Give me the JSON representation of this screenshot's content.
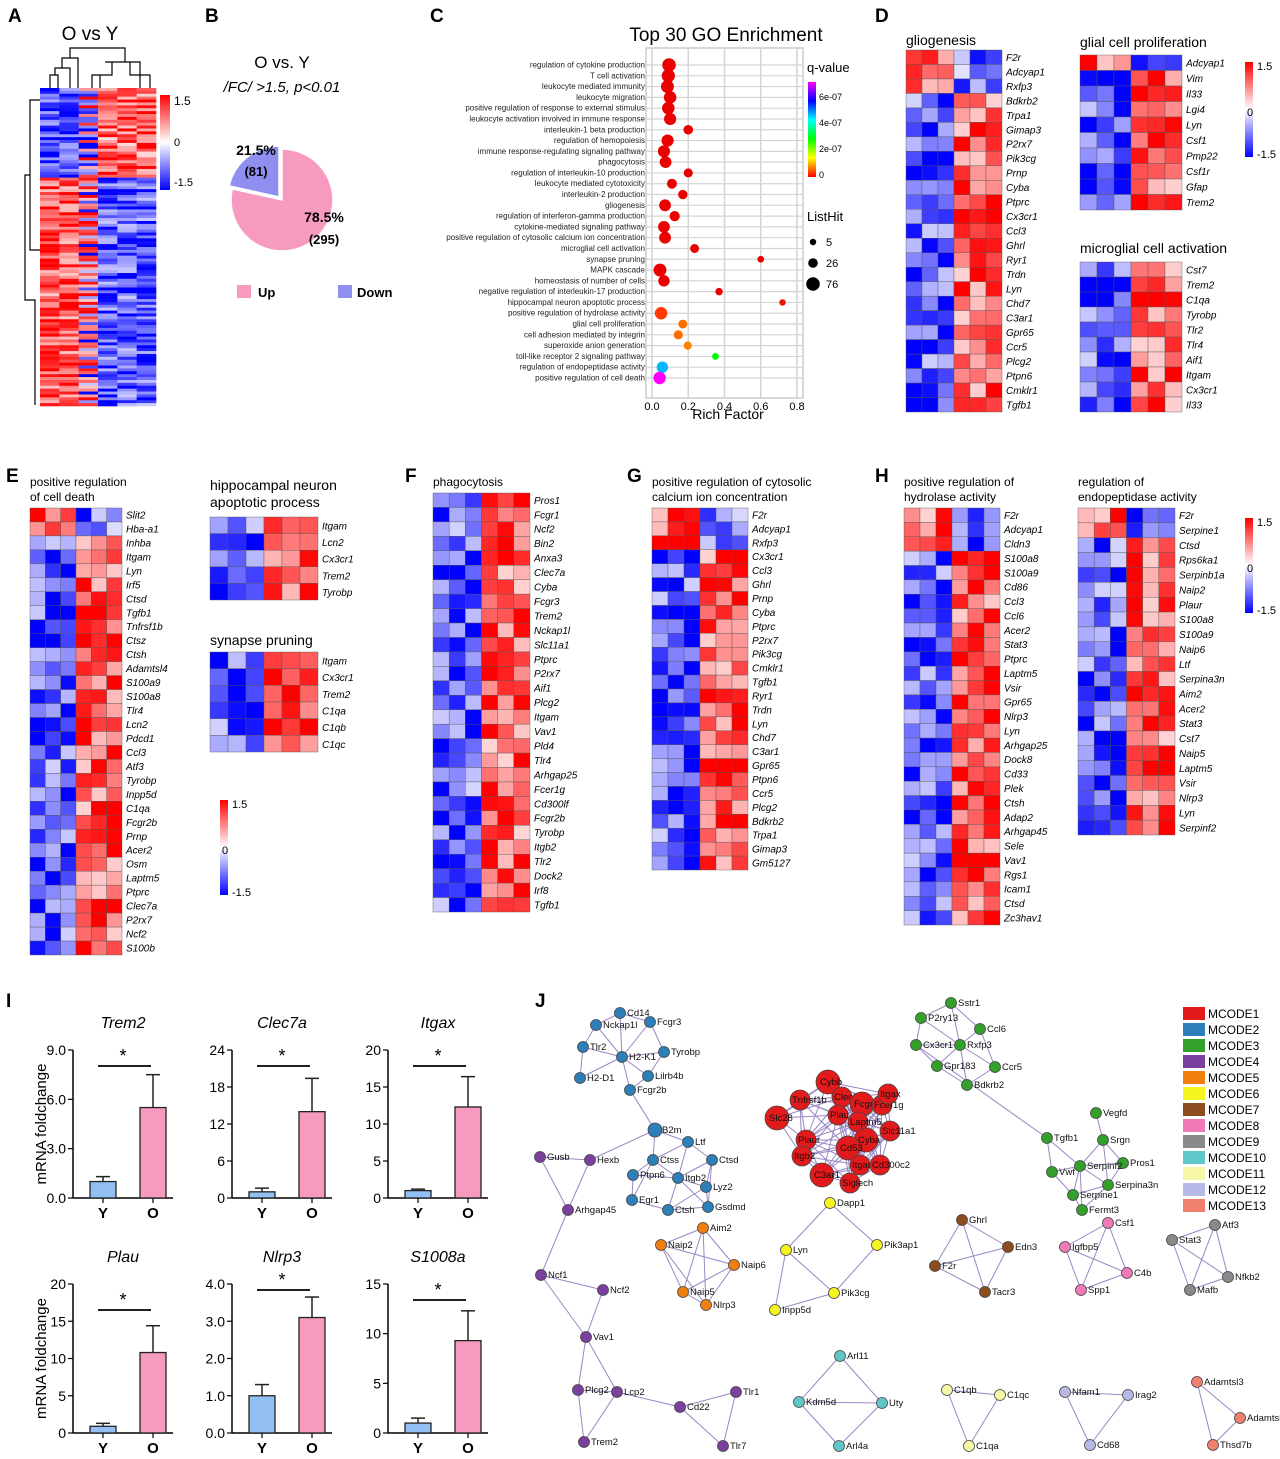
{
  "panel_letters": [
    "A",
    "B",
    "C",
    "D",
    "E",
    "F",
    "G",
    "H",
    "I",
    "J"
  ],
  "panel_a": {
    "title": "O vs Y",
    "colorbar": [
      "1.5",
      "0",
      "-1.5"
    ]
  },
  "panel_b": {
    "title": "O vs. Y",
    "subtitle": "/FC/ >1.5, p<0.01",
    "chart_data": {
      "type": "pie",
      "slices": [
        {
          "name": "Up",
          "percent": 78.5,
          "count": 295,
          "pct_label": "78.5%",
          "count_label": "(295)",
          "color": "#f79ac0"
        },
        {
          "name": "Down",
          "percent": 21.5,
          "count": 81,
          "pct_label": "21.5%",
          "count_label": "(81)",
          "color": "#8f8ff0"
        }
      ]
    }
  },
  "chart_data": {
    "type": "scatter",
    "title": "Top 30 GO Enrichment",
    "xlabel": "Rich Factor",
    "xlim": [
      0,
      0.8
    ],
    "xticks": [
      "0.0",
      "0.2",
      "0.4",
      "0.6",
      "0.8"
    ],
    "color_legend": {
      "title": "q-value",
      "ticks": [
        "6e-07",
        "4e-07",
        "2e-07",
        "0"
      ]
    },
    "size_legend": {
      "title": "ListHit",
      "values": [
        "5",
        "26",
        "76"
      ]
    },
    "grid": true,
    "terms": [
      {
        "label": "regulation of cytokine production",
        "rich": 0.094,
        "hit": 76,
        "q": 0
      },
      {
        "label": "T cell activation",
        "rich": 0.09,
        "hit": 70,
        "q": 0
      },
      {
        "label": "leukocyte mediated immunity",
        "rich": 0.085,
        "hit": 65,
        "q": 0
      },
      {
        "label": "leukocyte migration",
        "rich": 0.1,
        "hit": 60,
        "q": 0
      },
      {
        "label": "positive regulation of response to external stimulus",
        "rich": 0.09,
        "hit": 60,
        "q": 0
      },
      {
        "label": "leukocyte activation involved in immune response",
        "rich": 0.1,
        "hit": 55,
        "q": 0
      },
      {
        "label": "interleukin-1 beta production",
        "rich": 0.2,
        "hit": 26,
        "q": 0
      },
      {
        "label": "regulation of hemopoiesis",
        "rich": 0.086,
        "hit": 55,
        "q": 0
      },
      {
        "label": "immune response-regulating signaling pathway",
        "rich": 0.066,
        "hit": 55,
        "q": 0
      },
      {
        "label": "phagocytosis",
        "rich": 0.075,
        "hit": 50,
        "q": 0
      },
      {
        "label": "regulation of interleukin-10 production",
        "rich": 0.2,
        "hit": 22,
        "q": 0
      },
      {
        "label": "leukocyte mediated cytotoxicity",
        "rich": 0.11,
        "hit": 30,
        "q": 0
      },
      {
        "label": "interleukin-2 production",
        "rich": 0.17,
        "hit": 24,
        "q": 0
      },
      {
        "label": "gliogenesis",
        "rich": 0.072,
        "hit": 50,
        "q": 0
      },
      {
        "label": "regulation of interferon-gamma production",
        "rich": 0.125,
        "hit": 32,
        "q": 0
      },
      {
        "label": "cytokine-mediated signaling pathway",
        "rich": 0.066,
        "hit": 50,
        "q": 0
      },
      {
        "label": "positive regulation of cytosolic calcium ion concentration",
        "rich": 0.072,
        "hit": 50,
        "q": 0
      },
      {
        "label": "microglial cell activation",
        "rich": 0.235,
        "hit": 20,
        "q": 0
      },
      {
        "label": "synapse pruning",
        "rich": 0.6,
        "hit": 6,
        "q": 0
      },
      {
        "label": "MAPK cascade",
        "rich": 0.044,
        "hit": 65,
        "q": 0
      },
      {
        "label": "homeostasis of number of cells",
        "rich": 0.066,
        "hit": 45,
        "q": 0
      },
      {
        "label": "negative regulation of interleukin-17 production",
        "rich": 0.37,
        "hit": 10,
        "q": 0
      },
      {
        "label": "hippocampal neuron apoptotic process",
        "rich": 0.72,
        "hit": 5,
        "q": 1e-08
      },
      {
        "label": "positive regulation of hydrolase activity",
        "rich": 0.05,
        "hit": 60,
        "q": 3e-08
      },
      {
        "label": "glial cell proliferation",
        "rich": 0.17,
        "hit": 20,
        "q": 6e-08
      },
      {
        "label": "cell adhesion mediated by integrin",
        "rich": 0.145,
        "hit": 22,
        "q": 6e-08
      },
      {
        "label": "superoxide anion generation",
        "rich": 0.197,
        "hit": 15,
        "q": 7e-08
      },
      {
        "label": "toll-like receptor 2 signaling pathway",
        "rich": 0.35,
        "hit": 7,
        "q": 2.8e-07
      },
      {
        "label": "regulation of endopeptidase activity",
        "rich": 0.057,
        "hit": 45,
        "q": 4.6e-07
      },
      {
        "label": "positive regulation of cell death",
        "rich": 0.042,
        "hit": 60,
        "q": 7e-07
      }
    ]
  },
  "heatmaps": {
    "gliogenesis": {
      "title": "gliogenesis",
      "genes": [
        "F2r",
        "Adcyap1",
        "Rxfp3",
        "Bdkrb2",
        "Trpa1",
        "Gimap3",
        "P2rx7",
        "Pik3cg",
        "Prnp",
        "Cyba",
        "Ptprc",
        "Cx3cr1",
        "Ccl3",
        "Ghrl",
        "Ryr1",
        "Trdn",
        "Lyn",
        "Chd7",
        "C3ar1",
        "Gpr65",
        "Ccr5",
        "Plcg2",
        "Ptpn6",
        "Cmklr1",
        "Tgfb1"
      ]
    },
    "glial_prolif": {
      "title": "glial cell proliferation",
      "genes": [
        "Adcyap1",
        "Vim",
        "Il33",
        "Lgi4",
        "Lyn",
        "Csf1",
        "Pmp22",
        "Csf1r",
        "Gfap",
        "Trem2"
      ]
    },
    "microglial": {
      "title": "microglial cell activation",
      "genes": [
        "Cst7",
        "Trem2",
        "C1qa",
        "Tyrobp",
        "Tlr2",
        "Tlr4",
        "Aif1",
        "Itgam",
        "Cx3cr1",
        "Il33"
      ]
    },
    "cell_death": {
      "title": [
        "positive regulation",
        "of cell death"
      ],
      "genes": [
        "Slit2",
        "Hba-a1",
        "Inhba",
        "Itgam",
        "Lyn",
        "Irf5",
        "Ctsd",
        "Tgfb1",
        "Tnfrsf1b",
        "Ctsz",
        "Ctsh",
        "Adamtsl4",
        "S100a9",
        "S100a8",
        "Tlr4",
        "Lcn2",
        "Pdcd1",
        "Ccl3",
        "Atf3",
        "Tyrobp",
        "Inpp5d",
        "C1qa",
        "Fcgr2b",
        "Prnp",
        "Acer2",
        "Osm",
        "Laptm5",
        "Ptprc",
        "Clec7a",
        "P2rx7",
        "Ncf2",
        "S100b"
      ]
    },
    "hippocampal": {
      "title": [
        "hippocampal neuron",
        "apoptotic process"
      ],
      "genes": [
        "Itgam",
        "Lcn2",
        "Cx3cr1",
        "Trem2",
        "Tyrobp"
      ]
    },
    "synapse": {
      "title": [
        "synapse pruning"
      ],
      "genes": [
        "Itgam",
        "Cx3cr1",
        "Trem2",
        "C1qa",
        "C1qb",
        "C1qc"
      ]
    },
    "phagocytosis": {
      "title": "phagocytosis",
      "genes": [
        "Pros1",
        "Fcgr1",
        "Ncf2",
        "Bin2",
        "Anxa3",
        "Clec7a",
        "Cyba",
        "Fcgr3",
        "Trem2",
        "Nckap1l",
        "Slc11a1",
        "Ptprc",
        "P2rx7",
        "Aif1",
        "Plcg2",
        "Itgam",
        "Vav1",
        "Pld4",
        "Tlr4",
        "Arhgap25",
        "Fcer1g",
        "Cd300lf",
        "Fcgr2b",
        "Tyrobp",
        "Itgb2",
        "Tlr2",
        "Dock2",
        "Irf8",
        "Tgfb1"
      ]
    },
    "calcium": {
      "title": [
        "positive regulation of cytosolic",
        "calcium ion concentration"
      ],
      "genes": [
        "F2r",
        "Adcyap1",
        "Rxfp3",
        "Cx3cr1",
        "Ccl3",
        "Ghrl",
        "Prnp",
        "Cyba",
        "Ptprc",
        "P2rx7",
        "Pik3cg",
        "Cmklr1",
        "Tgfb1",
        "Ryr1",
        "Trdn",
        "Lyn",
        "Chd7",
        "C3ar1",
        "Gpr65",
        "Ptpn6",
        "Ccr5",
        "Plcg2",
        "Bdkrb2",
        "Trpa1",
        "Gimap3",
        "Gm5127"
      ]
    },
    "hydrolase": {
      "title": [
        "positive regulation of",
        "hydrolase activity"
      ],
      "genes": [
        "F2r",
        "Adcyap1",
        "Cldn3",
        "S100a8",
        "S100a9",
        "Cd86",
        "Ccl3",
        "Ccl6",
        "Acer2",
        "Stat3",
        "Ptprc",
        "Laptm5",
        "Vsir",
        "Gpr65",
        "Nlrp3",
        "Lyn",
        "Arhgap25",
        "Dock8",
        "Cd33",
        "Plek",
        "Ctsh",
        "Adap2",
        "Arhgap45",
        "Sele",
        "Vav1",
        "Rgs1",
        "Icam1",
        "Ctsd",
        "Zc3hav1"
      ]
    },
    "endopeptidase": {
      "title": [
        "regulation of",
        "endopeptidase activity"
      ],
      "genes": [
        "F2r",
        "Serpine1",
        "Ctsd",
        "Rps6ka1",
        "Serpinb1a",
        "Naip2",
        "Plaur",
        "S100a8",
        "S100a9",
        "Naip6",
        "Ltf",
        "Serpina3n",
        "Aim2",
        "Acer2",
        "Stat3",
        "Cst7",
        "Naip5",
        "Laptm5",
        "Vsir",
        "Nlrp3",
        "Lyn",
        "Serpinf2"
      ]
    },
    "colorbar": [
      "1.5",
      "0",
      "-1.5"
    ]
  },
  "bar_charts": {
    "ylabel": "mRNA foldchange",
    "categories": [
      "Y",
      "O"
    ],
    "colors": {
      "Y": "#92c0f2",
      "O": "#f79ac0"
    },
    "significance": "*",
    "charts": [
      {
        "title": "Trem2",
        "ylim": [
          0,
          9
        ],
        "yticks": [
          "0.0",
          "3.0",
          "6.0",
          "9.0"
        ],
        "values": [
          1.0,
          5.5
        ],
        "errors": [
          0.3,
          2.0
        ]
      },
      {
        "title": "Clec7a",
        "ylim": [
          0,
          24
        ],
        "yticks": [
          "0",
          "6",
          "12",
          "18",
          "24"
        ],
        "values": [
          1.0,
          14.0
        ],
        "errors": [
          0.6,
          5.4
        ]
      },
      {
        "title": "Itgax",
        "ylim": [
          0,
          20
        ],
        "yticks": [
          "0",
          "5",
          "10",
          "15",
          "20"
        ],
        "values": [
          1.0,
          12.3
        ],
        "errors": [
          0.2,
          4.1
        ]
      },
      {
        "title": "Plau",
        "ylim": [
          0,
          20
        ],
        "yticks": [
          "0",
          "5",
          "10",
          "15",
          "20"
        ],
        "values": [
          0.9,
          10.8
        ],
        "errors": [
          0.4,
          3.6
        ]
      },
      {
        "title": "Nlrp3",
        "ylim": [
          0,
          4
        ],
        "yticks": [
          "0.0",
          "1.0",
          "2.0",
          "3.0",
          "4.0"
        ],
        "values": [
          1.0,
          3.1
        ],
        "errors": [
          0.3,
          0.55
        ]
      },
      {
        "title": "S1008a",
        "ylim": [
          0,
          15
        ],
        "yticks": [
          "0",
          "5",
          "10",
          "15"
        ],
        "values": [
          1.0,
          9.3
        ],
        "errors": [
          0.5,
          3.0
        ]
      }
    ]
  },
  "network": {
    "clusters": [
      {
        "name": "MCODE1",
        "color": "#e31a1c",
        "nodes": [
          "Cybb",
          "Tnfrsf1b",
          "Clec5a",
          "Fcgr1",
          "Fcer1g",
          "Itgax",
          "Slc28",
          "Plau",
          "Laptm5",
          "Cyba",
          "Slc11a1",
          "Plaur",
          "Cd53",
          "Itgb2",
          "Itgam",
          "C3ar1",
          "Siglech",
          "Cd300c2"
        ]
      },
      {
        "name": "MCODE2",
        "color": "#2c7fb8",
        "nodes": [
          "Cd14",
          "Nckap1l",
          "Fcgr3",
          "Tlr2",
          "H2-K1",
          "Tyrobp",
          "H2-D1",
          "Lilrb4b",
          "Fcgr2b",
          "B2m",
          "Ltf",
          "Ctss",
          "Ctsd",
          "Ptpn6",
          "Itgb2",
          "Lyz2",
          "Egr1",
          "Ctsh",
          "Gsdmd"
        ]
      },
      {
        "name": "MCODE3",
        "color": "#33a02c",
        "nodes": [
          "Sstr1",
          "P2ry13",
          "Ccl6",
          "Cx3cr1",
          "Rxfp3",
          "Gpr183",
          "Ccr5",
          "Bdkrb2",
          "Vegfd",
          "Srgn",
          "Tgfb1",
          "Pros1",
          "Serpinf2",
          "Vwf",
          "Serpina3n",
          "Serpine1",
          "Fermt3"
        ]
      },
      {
        "name": "MCODE4",
        "color": "#7b3f9e",
        "nodes": [
          "Gusb",
          "Hexb",
          "Arhgap45",
          "Ncf1",
          "Ncf2",
          "Vav1",
          "Plcg2",
          "Lcp2",
          "Cd22",
          "Tlr1",
          "Tlr7",
          "Trem2"
        ]
      },
      {
        "name": "MCODE5",
        "color": "#f07f0f",
        "nodes": [
          "Aim2",
          "Naip2",
          "Naip6",
          "Naip5",
          "Nlrp3"
        ]
      },
      {
        "name": "MCODE6",
        "color": "#f5f51f",
        "nodes": [
          "Dapp1",
          "Lyn",
          "Pik3ap1",
          "Inpp5d",
          "Pik3cg"
        ]
      },
      {
        "name": "MCODE7",
        "color": "#8b4c1e",
        "nodes": [
          "Ghrl",
          "Edn3",
          "F2r",
          "Tacr3"
        ]
      },
      {
        "name": "MCODE8",
        "color": "#f07ab5",
        "nodes": [
          "Csf1",
          "Igfbp5",
          "C4b",
          "Spp1"
        ]
      },
      {
        "name": "MCODE9",
        "color": "#8a8a8a",
        "nodes": [
          "Stat3",
          "Atf3",
          "Mafb",
          "Nfkb2"
        ]
      },
      {
        "name": "MCODE10",
        "color": "#5fc7c7",
        "nodes": [
          "Arl11",
          "Kdm5d",
          "Uty",
          "Arl4a"
        ]
      },
      {
        "name": "MCODE11",
        "color": "#f7f7a8",
        "nodes": [
          "C1qb",
          "C1qc",
          "C1qa"
        ]
      },
      {
        "name": "MCODE12",
        "color": "#b8b8e6",
        "nodes": [
          "Nfam1",
          "Irag2",
          "Cd68"
        ]
      },
      {
        "name": "MCODE13",
        "color": "#f2806e",
        "nodes": [
          "Adamtsl3",
          "Adamtsl4",
          "Thsd7b"
        ]
      }
    ]
  }
}
